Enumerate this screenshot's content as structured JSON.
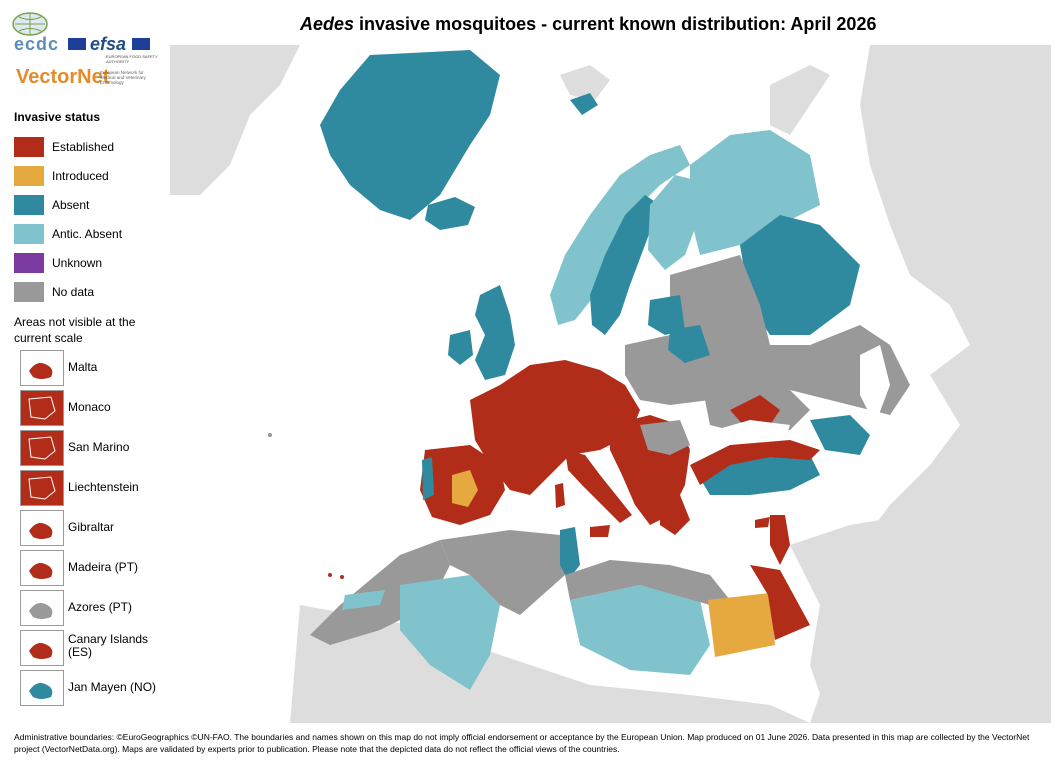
{
  "title": {
    "italic": "Aedes",
    "rest": " invasive mosquitoes - current known distribution: April 2026"
  },
  "logos": {
    "ecdc": "ecdc",
    "efsa": "efsa",
    "efsa_sub": "EUROPEAN FOOD SAFETY AUTHORITY",
    "vectornet": "VectorNet",
    "vectornet_sub": "European Network for Medical and Veterinary Entomology"
  },
  "legend": {
    "title": "Invasive status",
    "items": [
      {
        "label": "Established",
        "color": "#b12d19"
      },
      {
        "label": "Introduced",
        "color": "#e5a93f"
      },
      {
        "label": "Absent",
        "color": "#2f8aa0"
      },
      {
        "label": "Antic. Absent",
        "color": "#80c3cc"
      },
      {
        "label": "Unknown",
        "color": "#7a3aa0"
      },
      {
        "label": "No data",
        "color": "#999999"
      }
    ]
  },
  "areas_not_visible": {
    "title": "Areas not visible at the current scale",
    "items": [
      {
        "label": "Malta",
        "status": "Established"
      },
      {
        "label": "Monaco",
        "status": "Established"
      },
      {
        "label": "San Marino",
        "status": "Established"
      },
      {
        "label": "Liechtenstein",
        "status": "Established"
      },
      {
        "label": "Gibraltar",
        "status": "Established"
      },
      {
        "label": "Madeira (PT)",
        "status": "Established"
      },
      {
        "label": "Azores (PT)",
        "status": "No data"
      },
      {
        "label": "Canary Islands (ES)",
        "status": "Established"
      },
      {
        "label": "Jan Mayen (NO)",
        "status": "Absent"
      }
    ]
  },
  "colors": {
    "sea": "#ffffff",
    "land_outside": "#dddddd",
    "established": "#b12d19",
    "introduced": "#e5a93f",
    "absent": "#2f8aa0",
    "antic_absent": "#80c3cc",
    "no_data": "#999999"
  },
  "footer": "Administrative boundaries: ©EuroGeographics ©UN-FAO. The boundaries and names shown on this map do not imply official endorsement or acceptance by the European Union. Map produced on 01 June 2026. Data presented in this map are collected by the VectorNet project (VectorNetData.org). Maps are validated by experts prior to publication. Please note that the depicted data do not reflect the official views of the countries."
}
